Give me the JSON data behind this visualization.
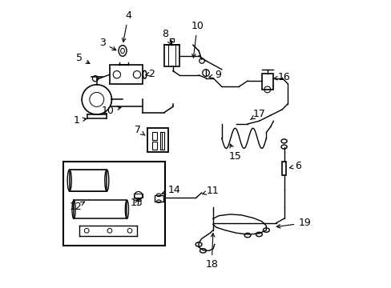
{
  "background_color": "#ffffff",
  "line_color": "#000000",
  "label_color": "#000000",
  "label_fontsize": 9
}
